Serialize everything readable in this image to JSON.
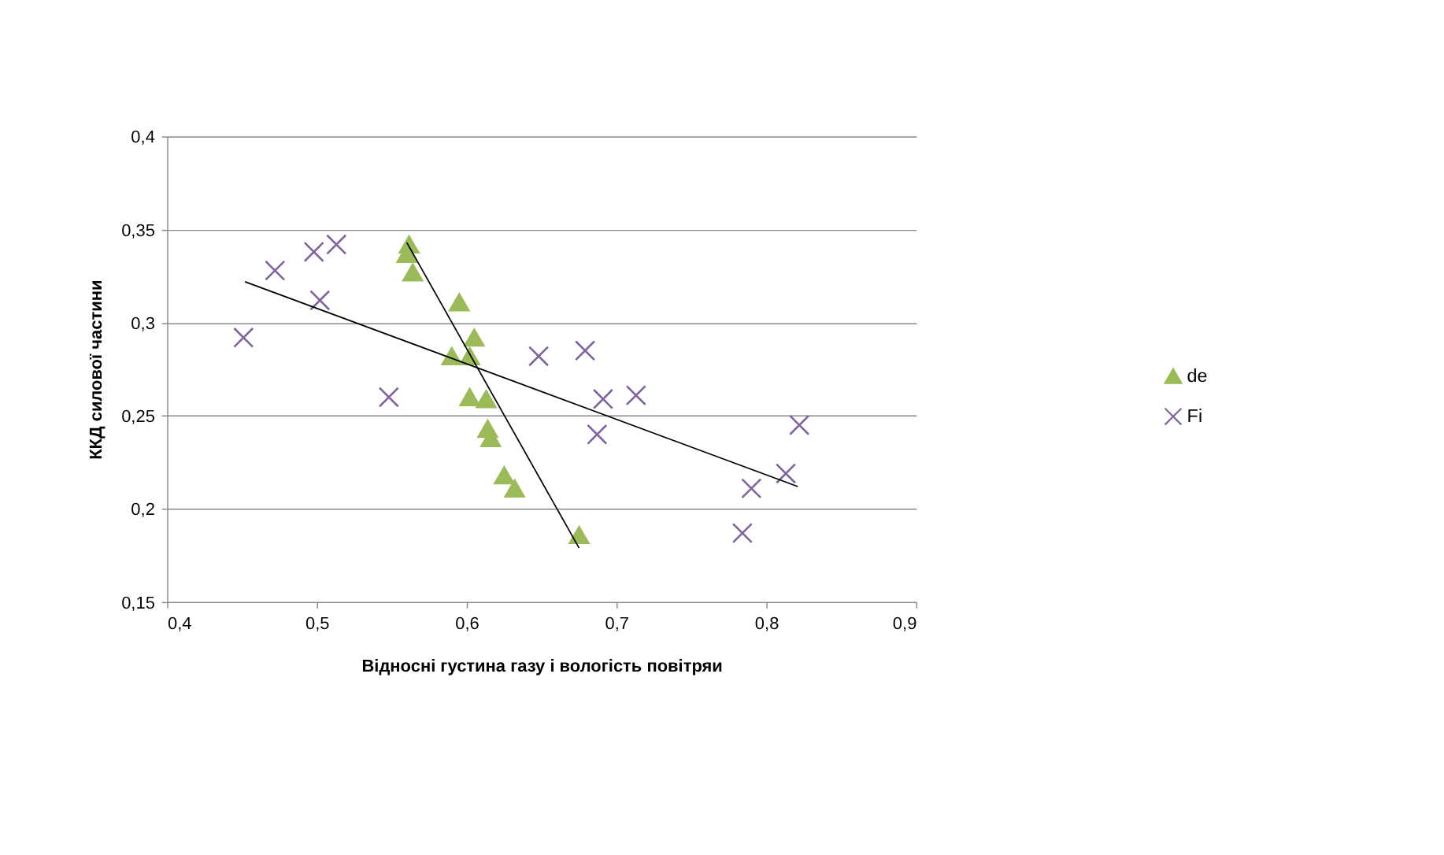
{
  "chart_data": {
    "type": "scatter",
    "xlabel": "Відносні густина газу і вологість повітряи",
    "ylabel": "ККД силової частини",
    "xlim": [
      0.4,
      0.9
    ],
    "ylim": [
      0.15,
      0.4
    ],
    "xticks": [
      {
        "value": 0.4,
        "label": "0,4"
      },
      {
        "value": 0.5,
        "label": "0,5"
      },
      {
        "value": 0.6,
        "label": "0,6"
      },
      {
        "value": 0.7,
        "label": "0,7"
      },
      {
        "value": 0.8,
        "label": "0,8"
      },
      {
        "value": 0.9,
        "label": "0,9"
      }
    ],
    "yticks": [
      {
        "value": 0.15,
        "label": "0,15"
      },
      {
        "value": 0.2,
        "label": "0,2"
      },
      {
        "value": 0.25,
        "label": "0,25"
      },
      {
        "value": 0.3,
        "label": "0,3"
      },
      {
        "value": 0.35,
        "label": "0,35"
      },
      {
        "value": 0.4,
        "label": "0,4"
      }
    ],
    "grid": "y",
    "legend": "right",
    "series": [
      {
        "name": "de",
        "color": "#9bbb59",
        "marker": "triangle",
        "x": [
          0.5615,
          0.56,
          0.564,
          0.595,
          0.605,
          0.59,
          0.602,
          0.602,
          0.613,
          0.614,
          0.616,
          0.625,
          0.632,
          0.675
        ],
        "values": [
          0.342,
          0.337,
          0.327,
          0.311,
          0.292,
          0.282,
          0.282,
          0.26,
          0.259,
          0.243,
          0.238,
          0.218,
          0.211,
          0.186
        ]
      },
      {
        "name": "Fi",
        "color": "#8064a2",
        "marker": "cross",
        "x": [
          0.451,
          0.472,
          0.498,
          0.513,
          0.502,
          0.548,
          0.648,
          0.679,
          0.691,
          0.687,
          0.713,
          0.822,
          0.813,
          0.79,
          0.784
        ],
        "values": [
          0.292,
          0.328,
          0.338,
          0.342,
          0.312,
          0.26,
          0.282,
          0.285,
          0.259,
          0.24,
          0.261,
          0.245,
          0.219,
          0.211,
          0.187
        ]
      },
      {
        "type": "line",
        "color": "#000000",
        "marker": "none",
        "x": [
          0.56,
          0.675
        ],
        "values": [
          0.343,
          0.179
        ]
      },
      {
        "type": "line",
        "color": "#000000",
        "marker": "none",
        "x": [
          0.452,
          0.821
        ],
        "values": [
          0.322,
          0.212
        ]
      }
    ]
  }
}
